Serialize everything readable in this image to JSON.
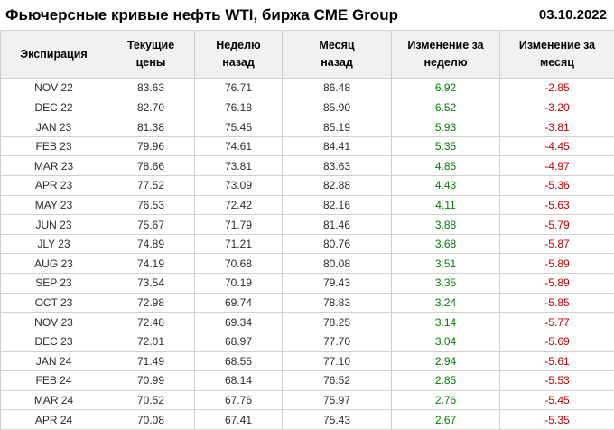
{
  "page_header": {
    "title": "Фьючерсные кривые нефть WTI, биржа CME Group",
    "date": "03.10.2022"
  },
  "colors": {
    "positive_change": "#008000",
    "negative_change": "#c00000",
    "header_bg": "#f1f1f1",
    "border": "#cfcfcf"
  },
  "chart_data": {
    "type": "table",
    "title": "Фьючерсные кривые нефть WTI, биржа CME Group",
    "date": "03.10.2022",
    "columns": [
      "Экспирация",
      "Текущие\nцены",
      "Неделю\nназад",
      "Месяц\nназад",
      "Изменение за\nнеделю",
      "Изменение за\nмесяц"
    ],
    "rows": [
      [
        "NOV 22",
        83.63,
        76.71,
        86.48,
        6.92,
        -2.85
      ],
      [
        "DEC 22",
        82.7,
        76.18,
        85.9,
        6.52,
        -3.2
      ],
      [
        "JAN 23",
        81.38,
        75.45,
        85.19,
        5.93,
        -3.81
      ],
      [
        "FEB 23",
        79.96,
        74.61,
        84.41,
        5.35,
        -4.45
      ],
      [
        "MAR 23",
        78.66,
        73.81,
        83.63,
        4.85,
        -4.97
      ],
      [
        "APR 23",
        77.52,
        73.09,
        82.88,
        4.43,
        -5.36
      ],
      [
        "MAY 23",
        76.53,
        72.42,
        82.16,
        4.11,
        -5.63
      ],
      [
        "JUN 23",
        75.67,
        71.79,
        81.46,
        3.88,
        -5.79
      ],
      [
        "JLY 23",
        74.89,
        71.21,
        80.76,
        3.68,
        -5.87
      ],
      [
        "AUG 23",
        74.19,
        70.68,
        80.08,
        3.51,
        -5.89
      ],
      [
        "SEP 23",
        73.54,
        70.19,
        79.43,
        3.35,
        -5.89
      ],
      [
        "OCT 23",
        72.98,
        69.74,
        78.83,
        3.24,
        -5.85
      ],
      [
        "NOV 23",
        72.48,
        69.34,
        78.25,
        3.14,
        -5.77
      ],
      [
        "DEC 23",
        72.01,
        68.97,
        77.7,
        3.04,
        -5.69
      ],
      [
        "JAN 24",
        71.49,
        68.55,
        77.1,
        2.94,
        -5.61
      ],
      [
        "FEB 24",
        70.99,
        68.14,
        76.52,
        2.85,
        -5.53
      ],
      [
        "MAR 24",
        70.52,
        67.76,
        75.97,
        2.76,
        -5.45
      ],
      [
        "APR 24",
        70.08,
        67.41,
        75.43,
        2.67,
        -5.35
      ]
    ]
  }
}
